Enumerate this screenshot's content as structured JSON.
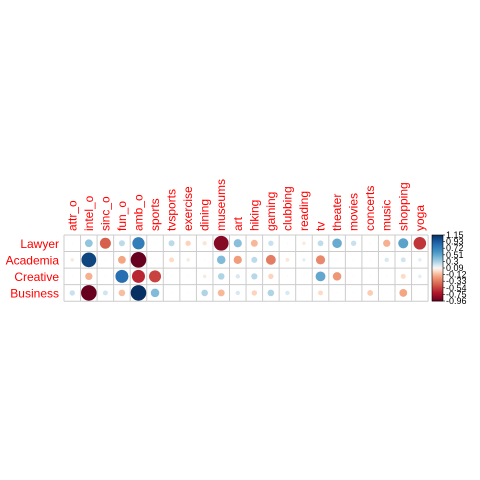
{
  "chart_data": {
    "type": "heatmap",
    "title": "",
    "rows": [
      "Lawyer",
      "Academia",
      "Creative",
      "Business"
    ],
    "columns": [
      "attr_o",
      "intel_o",
      "sinc_o",
      "fun_o",
      "amb_o",
      "sports",
      "tvsports",
      "exercise",
      "dining",
      "museums",
      "art",
      "hiking",
      "gaming",
      "clubbing",
      "reading",
      "tv",
      "theater",
      "movies",
      "concerts",
      "music",
      "shopping",
      "yoga"
    ],
    "values": [
      [
        0.0,
        0.25,
        -0.5,
        0.15,
        0.62,
        0.0,
        0.15,
        -0.12,
        -0.07,
        -0.9,
        0.28,
        -0.2,
        0.12,
        0.0,
        -0.05,
        0.14,
        0.38,
        0.12,
        0.0,
        -0.22,
        0.42,
        -0.65
      ],
      [
        -0.05,
        0.9,
        0.0,
        -0.25,
        -1.05,
        0.0,
        -0.1,
        -0.05,
        0.0,
        0.3,
        -0.28,
        0.15,
        -0.4,
        -0.06,
        0.05,
        -0.35,
        0.0,
        0.0,
        0.0,
        0.08,
        0.1,
        0.05
      ],
      [
        0.0,
        -0.22,
        0.0,
        0.7,
        -0.7,
        -0.6,
        0.0,
        0.0,
        -0.05,
        0.18,
        0.08,
        0.16,
        -0.12,
        0.0,
        0.0,
        0.4,
        -0.3,
        0.0,
        0.0,
        0.0,
        -0.1,
        0.05
      ],
      [
        0.12,
        -1.0,
        0.1,
        -0.18,
        1.15,
        0.3,
        0.0,
        0.0,
        0.18,
        -0.2,
        0.08,
        -0.12,
        0.18,
        0.08,
        0.0,
        -0.1,
        0.0,
        0.0,
        -0.14,
        0.0,
        -0.25,
        0.0
      ]
    ],
    "colorbar": {
      "min": -0.96,
      "max": 1.15,
      "tick_labels": [
        "1.15",
        "0.93",
        "0.72",
        "0.51",
        "0.3",
        "0.09",
        "-0.12",
        "-0.33",
        "-0.54",
        "-0.75",
        "-0.96"
      ]
    },
    "colors": {
      "negative": "#67001F",
      "mid": "#F7F7F7",
      "positive": "#053061",
      "label": "#FF0000",
      "grid": "#cccccc"
    }
  }
}
